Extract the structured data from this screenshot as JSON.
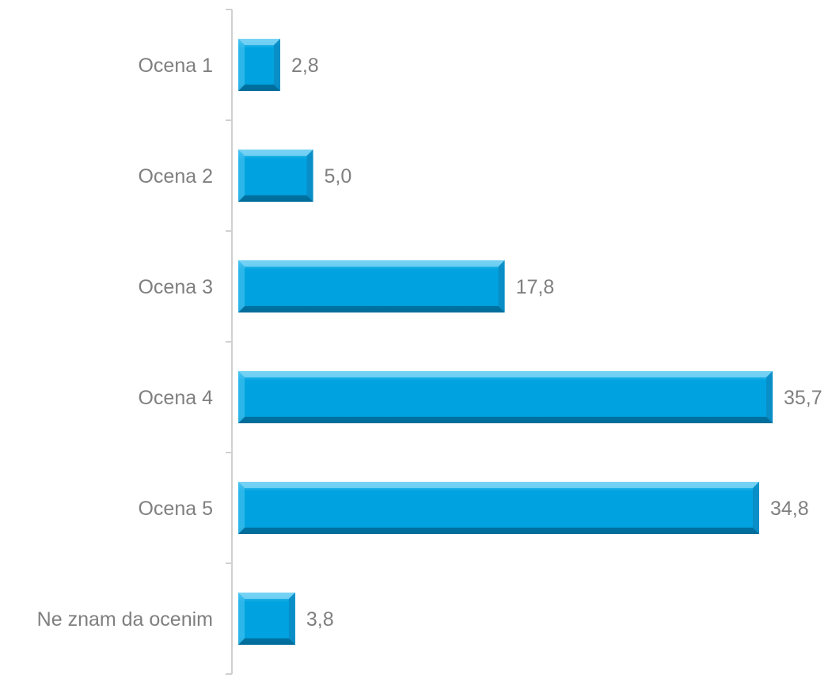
{
  "chart_data": {
    "type": "bar",
    "orientation": "horizontal",
    "categories": [
      "Ocena 1",
      "Ocena 2",
      "Ocena 3",
      "Ocena 4",
      "Ocena 5",
      "Ne znam da ocenim"
    ],
    "values": [
      2.8,
      5.0,
      17.8,
      35.7,
      34.8,
      3.8
    ],
    "value_labels": [
      "2,8",
      "5,0",
      "17,8",
      "35,7",
      "34,8",
      "3,8"
    ],
    "title": "",
    "xlabel": "",
    "ylabel": "",
    "xlim": [
      0,
      35.7
    ],
    "grid": false,
    "legend": "none",
    "bar_color": "#00a3e0",
    "bar_highlight": "#5ccaf2",
    "bar_shadow": "#0078a8"
  }
}
